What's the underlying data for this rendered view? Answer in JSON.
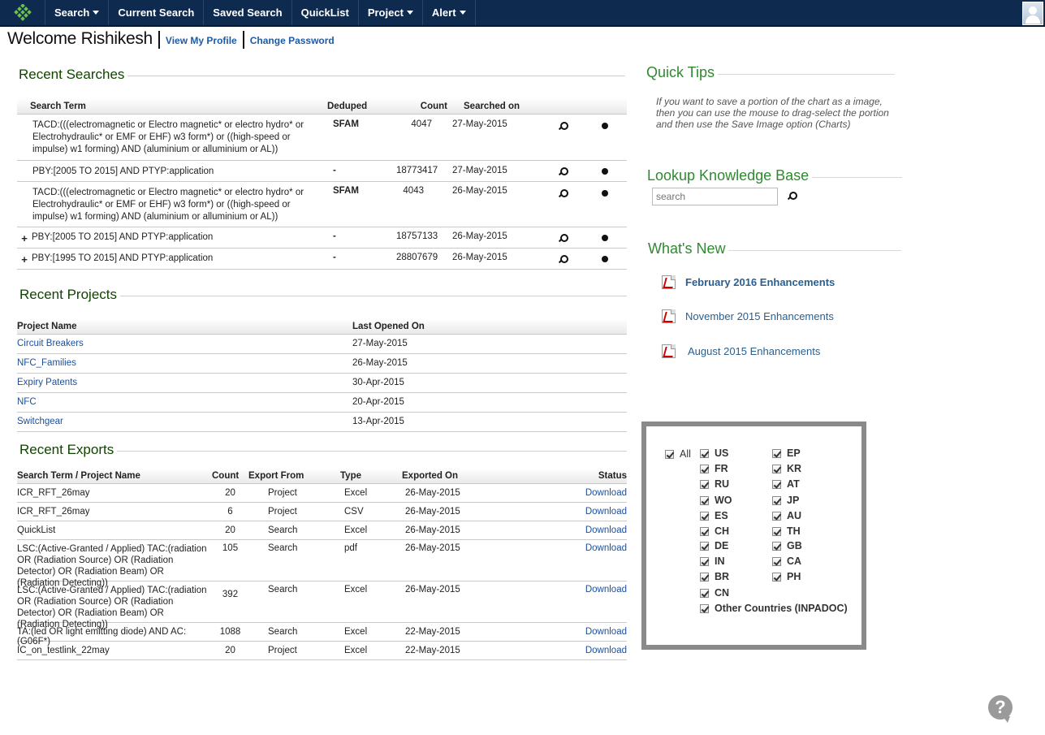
{
  "nav": {
    "items": [
      {
        "label": "Search",
        "dropdown": true
      },
      {
        "label": "Current Search",
        "dropdown": false
      },
      {
        "label": "Saved Search",
        "dropdown": false
      },
      {
        "label": "QuickList",
        "dropdown": false
      },
      {
        "label": "Project",
        "dropdown": true
      },
      {
        "label": "Alert",
        "dropdown": true
      }
    ]
  },
  "welcome": {
    "title": "Welcome Rishikesh",
    "view_profile": "View My Profile",
    "change_password": "Change Password"
  },
  "recent_searches": {
    "title": "Recent Searches",
    "headers": {
      "term": "Search Term",
      "deduped": "Deduped",
      "count": "Count",
      "searched_on": "Searched on"
    },
    "rows": [
      {
        "expand": "",
        "term": "TACD:(((electromagnetic or Electro magnetic* or electro hydro* or Electrohydraulic* or EMF or EHF) w3 form*) or ((high-speed or impulse) w1 forming) AND (aluminium or alluminium or AL))",
        "deduped": "SFAM",
        "count": "4047",
        "date": "27-May-2015"
      },
      {
        "expand": "",
        "term": "PBY:[2005 TO 2015] AND PTYP:application",
        "deduped": "-",
        "count": "18773417",
        "date": "27-May-2015"
      },
      {
        "expand": "",
        "term": "TACD:(((electromagnetic or Electro magnetic* or electro hydro* or Electrohydraulic* or EMF or EHF) w3 form*) or ((high-speed or impulse) w1 forming) AND (aluminium or alluminium or AL))",
        "deduped": "SFAM",
        "count": "4043",
        "date": "26-May-2015"
      },
      {
        "expand": "+",
        "term": "PBY:[2005 TO 2015] AND PTYP:application",
        "deduped": "-",
        "count": "18757133",
        "date": "26-May-2015"
      },
      {
        "expand": "+",
        "term": "PBY:[1995 TO 2015] AND PTYP:application",
        "deduped": "-",
        "count": "28807679",
        "date": "26-May-2015"
      }
    ]
  },
  "recent_projects": {
    "title": "Recent Projects",
    "headers": {
      "name": "Project Name",
      "opened": "Last Opened On"
    },
    "rows": [
      {
        "name": "Circuit Breakers",
        "date": "27-May-2015"
      },
      {
        "name": "NFC_Families",
        "date": "26-May-2015"
      },
      {
        "name": "Expiry Patents",
        "date": "30-Apr-2015"
      },
      {
        "name": "NFC",
        "date": "20-Apr-2015"
      },
      {
        "name": "Switchgear",
        "date": "13-Apr-2015"
      }
    ]
  },
  "recent_exports": {
    "title": "Recent Exports",
    "headers": {
      "term": "Search Term / Project Name",
      "count": "Count",
      "from": "Export From",
      "type": "Type",
      "exported": "Exported On",
      "status": "Status"
    },
    "rows": [
      {
        "term": "ICR_RFT_26may",
        "count": "20",
        "from": "Project",
        "type": "Excel",
        "date": "26-May-2015",
        "status": "Download"
      },
      {
        "term": "ICR_RFT_26may",
        "count": "6",
        "from": "Project",
        "type": "CSV",
        "date": "26-May-2015",
        "status": "Download"
      },
      {
        "term": "QuickList",
        "count": "20",
        "from": "Search",
        "type": "Excel",
        "date": "26-May-2015",
        "status": "Download"
      },
      {
        "term": "LSC:(Active-Granted / Applied) TAC:(radiation OR (Radiation Source) OR (Radiation Detector) OR (Radiation Beam) OR (Radiation Detecting))",
        "count": "105",
        "from": "Search",
        "type": "pdf",
        "date": "26-May-2015",
        "status": "Download"
      },
      {
        "term": "LSC:(Active-Granted / Applied) TAC:(radiation OR (Radiation Source) OR (Radiation Detector) OR (Radiation Beam) OR (Radiation Detecting))",
        "count": "392",
        "from": "Search",
        "type": "Excel",
        "date": "26-May-2015",
        "status": "Download"
      },
      {
        "term": "TA:(led OR light emitting diode) AND AC:(G06F*)",
        "count": "1088",
        "from": "Search",
        "type": "Excel",
        "date": "22-May-2015",
        "status": "Download"
      },
      {
        "term": "IC_on_testlink_22may",
        "count": "20",
        "from": "Project",
        "type": "Excel",
        "date": "22-May-2015",
        "status": "Download"
      }
    ]
  },
  "quick_tips": {
    "title": "Quick Tips",
    "text": "If you want to save a portion of the chart as a image, then you can use the mouse to drag-select the portion and then use the Save Image option (Charts)"
  },
  "knowledge_base": {
    "title": "Lookup Knowledge Base",
    "placeholder": "search"
  },
  "whats_new": {
    "title": "What's New",
    "items": [
      "February 2016 Enhancements",
      "November 2015 Enhancements",
      "August 2015 Enhancements"
    ]
  },
  "countries": {
    "all_label": "All",
    "col1": [
      "US",
      "FR",
      "RU",
      "WO",
      "ES",
      "CH",
      "DE",
      "IN",
      "BR",
      "CN"
    ],
    "col2": [
      "EP",
      "KR",
      "AT",
      "JP",
      "AU",
      "TH",
      "GB",
      "CA",
      "PH"
    ],
    "other": "Other Countries (INPADOC)"
  },
  "help": {
    "label": "?"
  }
}
